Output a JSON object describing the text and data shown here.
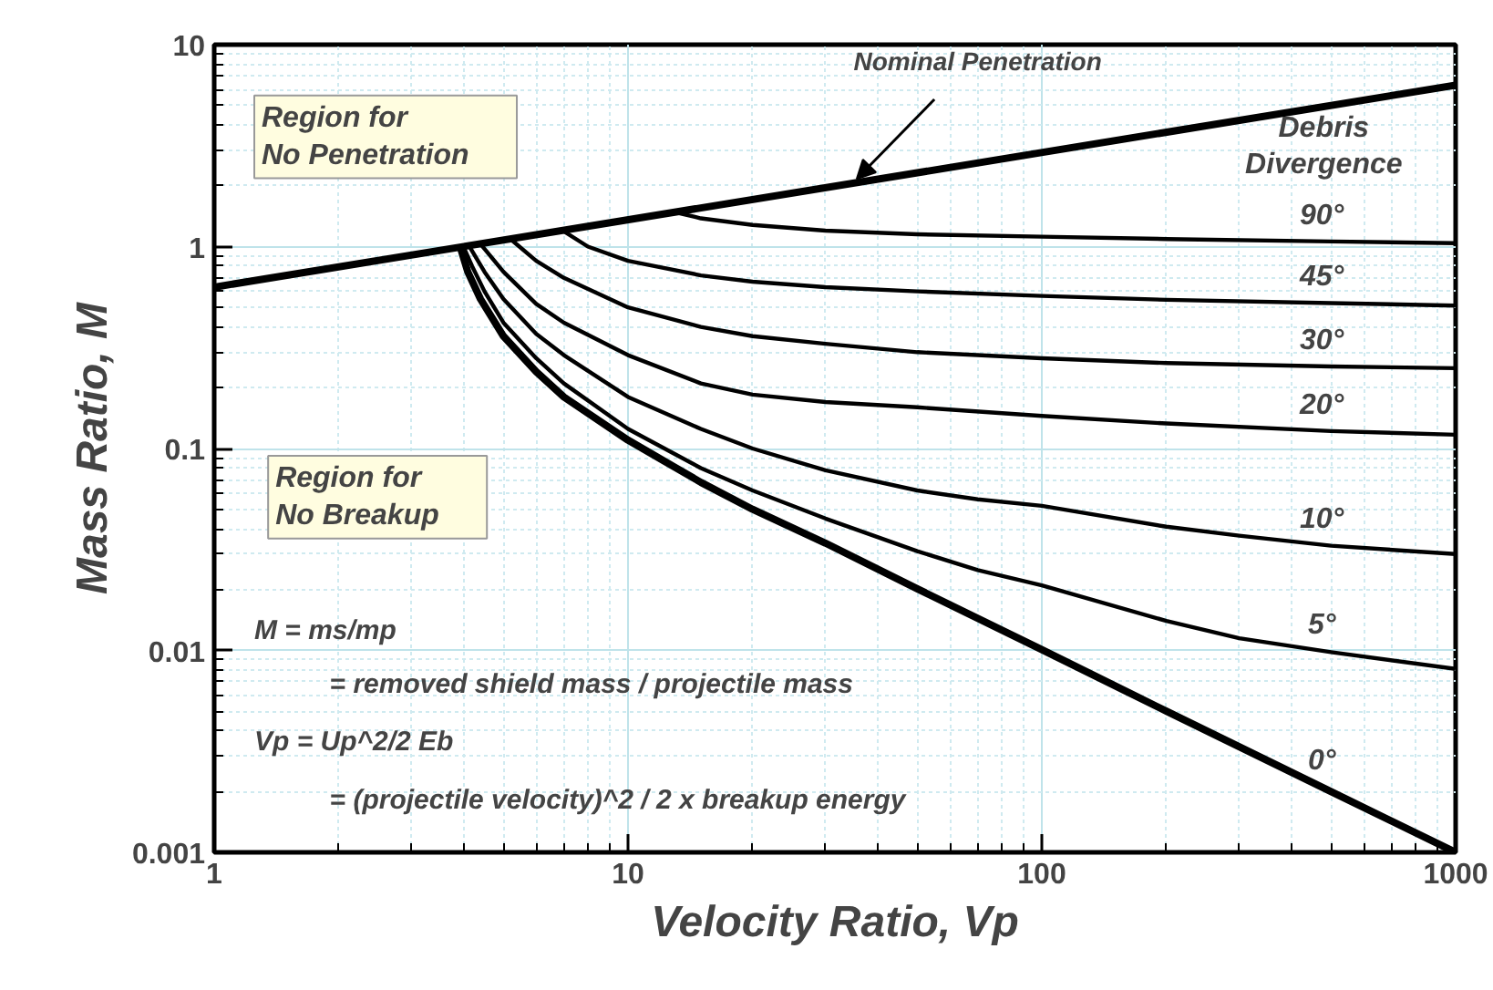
{
  "chart_data": {
    "type": "line",
    "xlabel": "Velocity Ratio, Vp",
    "ylabel": "Mass Ratio, M",
    "log": "xy",
    "grid": true,
    "marker": "none",
    "line_style": "solid",
    "xlim": [
      1,
      1000
    ],
    "ylim": [
      0.001,
      10
    ],
    "xticks": [
      1,
      10,
      100,
      1000
    ],
    "yticks": [
      0.001,
      0.01,
      0.1,
      1,
      10
    ],
    "series": [
      {
        "name": "Nominal Penetration",
        "color": "#000000",
        "x": [
          1,
          1000
        ],
        "values": [
          0.63,
          6.3
        ]
      },
      {
        "name": "90°",
        "color": "#000000",
        "x": [
          13,
          15,
          20,
          30,
          50,
          100,
          200,
          500,
          1000
        ],
        "values": [
          1.48,
          1.38,
          1.28,
          1.2,
          1.15,
          1.12,
          1.09,
          1.06,
          1.04
        ]
      },
      {
        "name": "45°",
        "color": "#000000",
        "x": [
          6.95,
          8,
          10,
          15,
          20,
          30,
          50,
          100,
          200,
          500,
          1000
        ],
        "values": [
          1.2,
          1.0,
          0.85,
          0.72,
          0.67,
          0.63,
          0.6,
          0.57,
          0.545,
          0.525,
          0.51
        ]
      },
      {
        "name": "30°",
        "color": "#000000",
        "x": [
          5.2,
          6,
          7,
          10,
          15,
          20,
          30,
          50,
          100,
          200,
          500,
          1000
        ],
        "values": [
          1.09,
          0.85,
          0.7,
          0.5,
          0.4,
          0.36,
          0.33,
          0.3,
          0.28,
          0.265,
          0.255,
          0.25
        ]
      },
      {
        "name": "20°",
        "color": "#000000",
        "x": [
          4.4,
          5,
          6,
          7,
          10,
          15,
          20,
          30,
          50,
          100,
          200,
          500,
          1000
        ],
        "values": [
          1.03,
          0.75,
          0.52,
          0.42,
          0.29,
          0.21,
          0.185,
          0.17,
          0.16,
          0.145,
          0.133,
          0.122,
          0.117
        ]
      },
      {
        "name": "10°",
        "color": "#000000",
        "x": [
          4.15,
          4.5,
          5,
          6,
          7,
          10,
          15,
          20,
          30,
          50,
          70,
          100,
          200,
          300,
          500,
          1000
        ],
        "values": [
          0.99,
          0.75,
          0.55,
          0.37,
          0.29,
          0.18,
          0.125,
          0.1,
          0.078,
          0.062,
          0.056,
          0.052,
          0.041,
          0.037,
          0.033,
          0.03
        ]
      },
      {
        "name": "5°",
        "color": "#000000",
        "x": [
          4.0,
          4.2,
          4.5,
          5,
          6,
          7,
          10,
          15,
          20,
          30,
          50,
          70,
          100,
          200,
          300,
          500,
          1000
        ],
        "values": [
          1.0,
          0.8,
          0.6,
          0.42,
          0.28,
          0.21,
          0.125,
          0.08,
          0.062,
          0.045,
          0.031,
          0.025,
          0.021,
          0.014,
          0.0115,
          0.0098,
          0.0081
        ]
      },
      {
        "name": "0°",
        "color": "#000000",
        "x": [
          3.93,
          4.1,
          4.4,
          5,
          6,
          7,
          10,
          15,
          20,
          30,
          50,
          100,
          200,
          500,
          1000
        ],
        "values": [
          1.0,
          0.75,
          0.55,
          0.36,
          0.24,
          0.18,
          0.11,
          0.068,
          0.05,
          0.034,
          0.0202,
          0.0101,
          0.005,
          0.002,
          0.001
        ]
      }
    ],
    "annotations": [
      "Region for\n     No Penetration",
      "Region for\n     No Breakup",
      "Debris\nDivergence",
      "M = ms/mp",
      "= removed shield mass / projectile mass",
      "Vp = Up^2/2 Eb",
      "= (projectile velocity)^2 / 2 x breakup energy"
    ]
  }
}
